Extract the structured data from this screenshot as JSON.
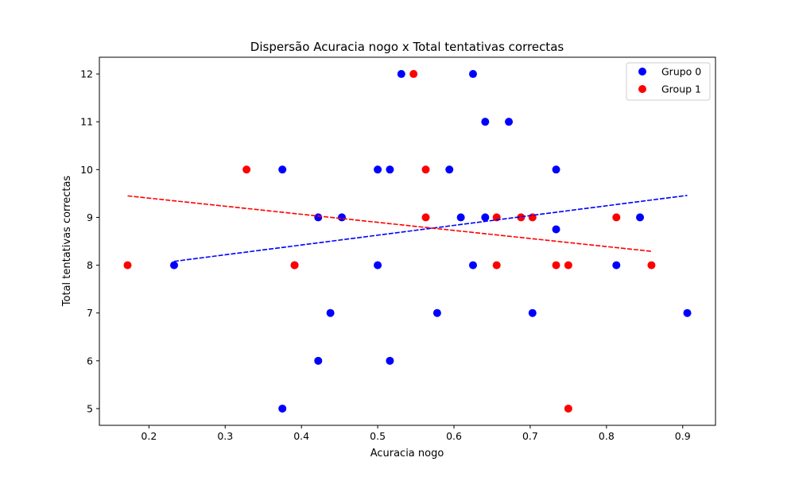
{
  "chart_data": {
    "type": "scatter",
    "title": "Dispersão Acuracia nogo x Total tentativas correctas",
    "xlabel": "Acuracia nogo",
    "ylabel": "Total tentativas correctas",
    "xlim": [
      0.135,
      0.943
    ],
    "ylim": [
      4.65,
      12.35
    ],
    "xticks": [
      0.2,
      0.3,
      0.4,
      0.5,
      0.6,
      0.7,
      0.8,
      0.9
    ],
    "xtick_labels": [
      "0.2",
      "0.3",
      "0.4",
      "0.5",
      "0.6",
      "0.7",
      "0.8",
      "0.9"
    ],
    "yticks": [
      5,
      6,
      7,
      8,
      9,
      10,
      11,
      12
    ],
    "ytick_labels": [
      "5",
      "6",
      "7",
      "8",
      "9",
      "10",
      "11",
      "12"
    ],
    "legend_position": "top-right",
    "series": [
      {
        "name": "Grupo 0",
        "color": "#0000ff",
        "x": [
          0.233,
          0.375,
          0.375,
          0.391,
          0.422,
          0.422,
          0.438,
          0.453,
          0.5,
          0.5,
          0.516,
          0.516,
          0.531,
          0.578,
          0.594,
          0.609,
          0.625,
          0.625,
          0.641,
          0.641,
          0.672,
          0.703,
          0.734,
          0.734,
          0.813,
          0.844,
          0.906
        ],
        "y": [
          8,
          10,
          5,
          8,
          9,
          6,
          7,
          9,
          10,
          8,
          10,
          6,
          12,
          7,
          10,
          9,
          12,
          8,
          11,
          9,
          11,
          7,
          10,
          8.75,
          8,
          9,
          7
        ],
        "trend": {
          "x": [
            0.233,
            0.906
          ],
          "y": [
            8.08,
            9.46
          ]
        }
      },
      {
        "name": "Group 1",
        "color": "#ff0000",
        "x": [
          0.172,
          0.328,
          0.391,
          0.547,
          0.563,
          0.563,
          0.656,
          0.656,
          0.688,
          0.703,
          0.734,
          0.75,
          0.75,
          0.813,
          0.859
        ],
        "y": [
          8,
          10,
          8,
          12,
          10,
          9,
          9,
          8,
          9,
          9,
          8,
          8,
          5,
          9,
          8
        ],
        "trend": {
          "x": [
            0.172,
            0.859
          ],
          "y": [
            9.45,
            8.29
          ]
        }
      }
    ]
  }
}
